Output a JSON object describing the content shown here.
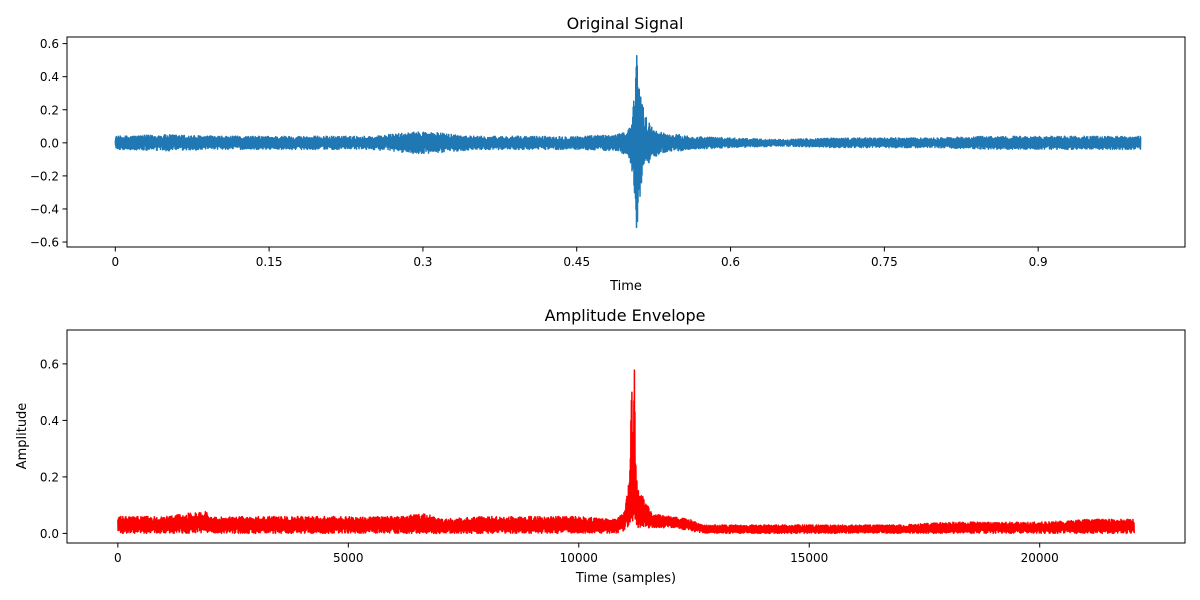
{
  "chart_data": [
    {
      "type": "line",
      "title": "Original Signal",
      "xlabel": "Time",
      "ylabel": "",
      "xlim": [
        -0.0471,
        1.0432
      ],
      "ylim": [
        -0.63,
        0.64
      ],
      "xticks": [
        0,
        0.15,
        0.3,
        0.45,
        0.6,
        0.75,
        0.9
      ],
      "xtick_labels": [
        "0",
        "0.15",
        "0.3",
        "0.45",
        "0.6",
        "0.75",
        "0.9"
      ],
      "yticks": [
        -0.6,
        -0.4,
        -0.2,
        0.0,
        0.2,
        0.4,
        0.6
      ],
      "ytick_labels": [
        "−0.6",
        "−0.4",
        "−0.2",
        "0.0",
        "0.2",
        "0.4",
        "0.6"
      ],
      "grid": false,
      "series": [
        {
          "color": "#1f77b4",
          "x": [
            0.0,
            0.05,
            0.1,
            0.15,
            0.2,
            0.25,
            0.3,
            0.35,
            0.4,
            0.45,
            0.49,
            0.5,
            0.505,
            0.507,
            0.509,
            0.511,
            0.514,
            0.518,
            0.523,
            0.53,
            0.54,
            0.55,
            0.56,
            0.6,
            0.65,
            0.7,
            0.75,
            0.8,
            0.85,
            0.9,
            0.95,
            1.0
          ],
          "y_max": [
            0.04,
            0.05,
            0.04,
            0.04,
            0.04,
            0.04,
            0.07,
            0.04,
            0.04,
            0.04,
            0.05,
            0.08,
            0.2,
            0.5,
            0.57,
            0.4,
            0.25,
            0.15,
            0.1,
            0.07,
            0.05,
            0.05,
            0.04,
            0.03,
            0.02,
            0.03,
            0.03,
            0.03,
            0.04,
            0.04,
            0.04,
            0.04
          ],
          "y_min": [
            -0.04,
            -0.05,
            -0.04,
            -0.04,
            -0.04,
            -0.04,
            -0.07,
            -0.04,
            -0.04,
            -0.04,
            -0.05,
            -0.08,
            -0.2,
            -0.52,
            -0.58,
            -0.4,
            -0.25,
            -0.15,
            -0.1,
            -0.07,
            -0.05,
            -0.05,
            -0.04,
            -0.03,
            -0.02,
            -0.03,
            -0.03,
            -0.03,
            -0.04,
            -0.04,
            -0.04,
            -0.04
          ]
        }
      ]
    },
    {
      "type": "line",
      "title": "Amplitude Envelope",
      "xlabel": "Time (samples)",
      "ylabel": "Amplitude",
      "xlim": [
        -1103,
        23152
      ],
      "ylim": [
        -0.034,
        0.72
      ],
      "xticks": [
        0,
        5000,
        10000,
        15000,
        20000
      ],
      "xtick_labels": [
        "0",
        "5000",
        "10000",
        "15000",
        "20000"
      ],
      "yticks": [
        0.0,
        0.2,
        0.4,
        0.6
      ],
      "ytick_labels": [
        "0.0",
        "0.2",
        "0.4",
        "0.6"
      ],
      "grid": false,
      "series": [
        {
          "color": "#ff0000",
          "x": [
            0,
            1000,
            1900,
            2000,
            3000,
            4000,
            5000,
            6000,
            6700,
            7000,
            8000,
            9000,
            10000,
            10800,
            11000,
            11100,
            11150,
            11180,
            11200,
            11220,
            11250,
            11300,
            11400,
            11500,
            11600,
            12000,
            12400,
            12700,
            13000,
            14000,
            15000,
            16000,
            17000,
            18000,
            19000,
            20000,
            21000,
            22050
          ],
          "y_max": [
            0.06,
            0.06,
            0.08,
            0.06,
            0.06,
            0.06,
            0.06,
            0.06,
            0.07,
            0.05,
            0.06,
            0.06,
            0.06,
            0.05,
            0.08,
            0.2,
            0.56,
            0.3,
            0.69,
            0.4,
            0.2,
            0.15,
            0.13,
            0.1,
            0.07,
            0.06,
            0.05,
            0.03,
            0.03,
            0.03,
            0.03,
            0.03,
            0.03,
            0.04,
            0.04,
            0.04,
            0.05,
            0.05
          ],
          "y_min": [
            0.0,
            0.0,
            0.0,
            0.0,
            0.0,
            0.0,
            0.0,
            0.0,
            0.0,
            0.0,
            0.0,
            0.0,
            0.0,
            0.0,
            0.01,
            0.03,
            0.05,
            0.03,
            0.05,
            0.03,
            0.02,
            0.02,
            0.02,
            0.02,
            0.02,
            0.02,
            0.01,
            0.0,
            0.0,
            0.0,
            0.0,
            0.0,
            0.0,
            0.0,
            0.0,
            0.0,
            0.0,
            0.0
          ]
        }
      ]
    }
  ]
}
